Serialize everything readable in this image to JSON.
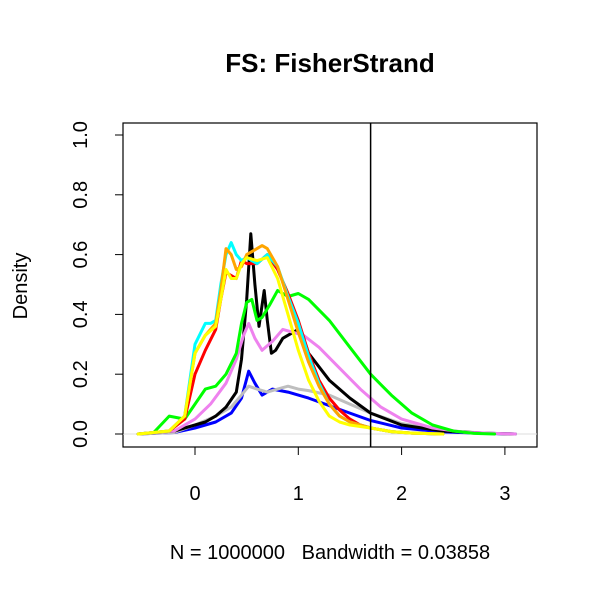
{
  "chart_data": {
    "type": "line",
    "title": "FS: FisherStrand",
    "xlabel": "N = 1000000   Bandwidth = 0.03858",
    "ylabel": "Density",
    "xlim": [
      -0.6,
      3.2
    ],
    "ylim": [
      0.0,
      1.0
    ],
    "x_ticks": [
      0,
      1,
      2,
      3
    ],
    "x_tick_labels": [
      "0",
      "1",
      "2",
      "3"
    ],
    "y_ticks": [
      0.0,
      0.2,
      0.4,
      0.6,
      0.8,
      1.0
    ],
    "y_tick_labels": [
      "0.0",
      "0.2",
      "0.4",
      "0.6",
      "0.8",
      "1.0"
    ],
    "vertical_line_x": 1.7,
    "grid": false,
    "legend": "none",
    "series": [
      {
        "color": "#0000ff",
        "x": [
          -0.55,
          -0.2,
          0,
          0.2,
          0.35,
          0.45,
          0.52,
          0.58,
          0.65,
          0.75,
          0.9,
          1.0,
          1.1,
          1.3,
          1.5,
          1.7,
          2.0,
          2.4,
          2.8,
          3.1
        ],
        "y": [
          0,
          0.005,
          0.02,
          0.04,
          0.07,
          0.12,
          0.21,
          0.17,
          0.13,
          0.15,
          0.14,
          0.13,
          0.12,
          0.095,
          0.07,
          0.045,
          0.02,
          0.007,
          0.002,
          0
        ]
      },
      {
        "color": "#bebebe",
        "x": [
          -0.55,
          -0.2,
          0,
          0.2,
          0.35,
          0.45,
          0.52,
          0.6,
          0.7,
          0.8,
          0.9,
          1.0,
          1.1,
          1.3,
          1.5,
          1.7,
          2.0,
          2.4,
          2.8,
          3.1
        ],
        "y": [
          0,
          0.005,
          0.03,
          0.06,
          0.09,
          0.13,
          0.16,
          0.15,
          0.14,
          0.15,
          0.16,
          0.15,
          0.145,
          0.13,
          0.1,
          0.07,
          0.035,
          0.012,
          0.003,
          0
        ]
      },
      {
        "color": "#000000",
        "x": [
          -0.55,
          -0.2,
          0,
          0.1,
          0.2,
          0.3,
          0.4,
          0.45,
          0.5,
          0.54,
          0.58,
          0.62,
          0.67,
          0.7,
          0.74,
          0.78,
          0.85,
          0.95,
          1.0,
          1.05,
          1.1,
          1.3,
          1.5,
          1.7,
          2.0,
          2.4,
          2.8,
          3.1
        ],
        "y": [
          0,
          0.01,
          0.03,
          0.04,
          0.06,
          0.09,
          0.14,
          0.25,
          0.45,
          0.67,
          0.5,
          0.36,
          0.48,
          0.38,
          0.27,
          0.28,
          0.32,
          0.34,
          0.35,
          0.32,
          0.27,
          0.18,
          0.12,
          0.07,
          0.03,
          0.01,
          0.003,
          0
        ]
      },
      {
        "color": "#ee82ee",
        "x": [
          -0.55,
          -0.2,
          0,
          0.15,
          0.3,
          0.4,
          0.47,
          0.52,
          0.58,
          0.65,
          0.75,
          0.85,
          0.95,
          1.05,
          1.2,
          1.4,
          1.6,
          1.8,
          2.0,
          2.3,
          2.6,
          2.9,
          3.1
        ],
        "y": [
          0,
          0.01,
          0.05,
          0.1,
          0.17,
          0.25,
          0.33,
          0.37,
          0.32,
          0.28,
          0.31,
          0.35,
          0.34,
          0.33,
          0.29,
          0.22,
          0.15,
          0.09,
          0.05,
          0.02,
          0.006,
          0.002,
          0
        ]
      },
      {
        "color": "#00ff00",
        "x": [
          -0.55,
          -0.4,
          -0.25,
          -0.1,
          0,
          0.1,
          0.2,
          0.3,
          0.4,
          0.45,
          0.5,
          0.55,
          0.6,
          0.65,
          0.72,
          0.8,
          0.9,
          1.0,
          1.1,
          1.3,
          1.5,
          1.7,
          1.9,
          2.1,
          2.3,
          2.5,
          2.7,
          2.9
        ],
        "y": [
          0,
          0.005,
          0.06,
          0.05,
          0.1,
          0.15,
          0.16,
          0.2,
          0.27,
          0.37,
          0.44,
          0.45,
          0.38,
          0.39,
          0.43,
          0.48,
          0.46,
          0.47,
          0.45,
          0.38,
          0.29,
          0.2,
          0.13,
          0.07,
          0.03,
          0.01,
          0.002,
          0
        ]
      },
      {
        "color": "#ff0000",
        "x": [
          -0.55,
          -0.25,
          -0.1,
          0,
          0.1,
          0.2,
          0.25,
          0.3,
          0.35,
          0.4,
          0.45,
          0.5,
          0.6,
          0.7,
          0.8,
          0.9,
          1.0,
          1.1,
          1.2,
          1.3,
          1.4,
          1.5,
          1.6,
          1.7,
          1.9,
          2.1,
          2.4
        ],
        "y": [
          0,
          0.01,
          0.05,
          0.2,
          0.28,
          0.35,
          0.45,
          0.54,
          0.53,
          0.52,
          0.58,
          0.57,
          0.57,
          0.6,
          0.55,
          0.47,
          0.38,
          0.27,
          0.18,
          0.12,
          0.08,
          0.05,
          0.03,
          0.02,
          0.008,
          0.003,
          0
        ]
      },
      {
        "color": "#00ffff",
        "x": [
          -0.55,
          -0.25,
          -0.1,
          0,
          0.1,
          0.15,
          0.2,
          0.25,
          0.3,
          0.35,
          0.4,
          0.45,
          0.5,
          0.6,
          0.7,
          0.8,
          0.9,
          1.0,
          1.1,
          1.2,
          1.3,
          1.4,
          1.5,
          1.7,
          1.9,
          2.1,
          2.4
        ],
        "y": [
          0,
          0.01,
          0.06,
          0.3,
          0.37,
          0.37,
          0.38,
          0.5,
          0.6,
          0.64,
          0.6,
          0.58,
          0.59,
          0.57,
          0.6,
          0.56,
          0.46,
          0.37,
          0.26,
          0.17,
          0.1,
          0.06,
          0.04,
          0.02,
          0.008,
          0.003,
          0
        ]
      },
      {
        "color": "#ffa500",
        "x": [
          -0.55,
          -0.25,
          -0.1,
          0,
          0.1,
          0.2,
          0.25,
          0.3,
          0.35,
          0.4,
          0.45,
          0.5,
          0.6,
          0.65,
          0.7,
          0.8,
          0.9,
          1.0,
          1.1,
          1.2,
          1.3,
          1.4,
          1.5,
          1.7,
          1.9,
          2.1,
          2.4
        ],
        "y": [
          0,
          0.01,
          0.06,
          0.27,
          0.33,
          0.37,
          0.48,
          0.62,
          0.6,
          0.55,
          0.56,
          0.6,
          0.62,
          0.63,
          0.62,
          0.56,
          0.45,
          0.34,
          0.24,
          0.16,
          0.1,
          0.06,
          0.04,
          0.02,
          0.008,
          0.003,
          0
        ]
      },
      {
        "color": "#ffff00",
        "x": [
          -0.55,
          -0.25,
          -0.1,
          0,
          0.1,
          0.2,
          0.25,
          0.3,
          0.35,
          0.4,
          0.45,
          0.5,
          0.6,
          0.7,
          0.8,
          0.9,
          1.0,
          1.1,
          1.2,
          1.3,
          1.4,
          1.5,
          1.7,
          1.9,
          2.1,
          2.4
        ],
        "y": [
          0,
          0.01,
          0.06,
          0.27,
          0.33,
          0.36,
          0.45,
          0.55,
          0.52,
          0.52,
          0.57,
          0.59,
          0.58,
          0.59,
          0.52,
          0.4,
          0.28,
          0.18,
          0.11,
          0.06,
          0.04,
          0.03,
          0.02,
          0.008,
          0.003,
          0
        ]
      }
    ]
  }
}
